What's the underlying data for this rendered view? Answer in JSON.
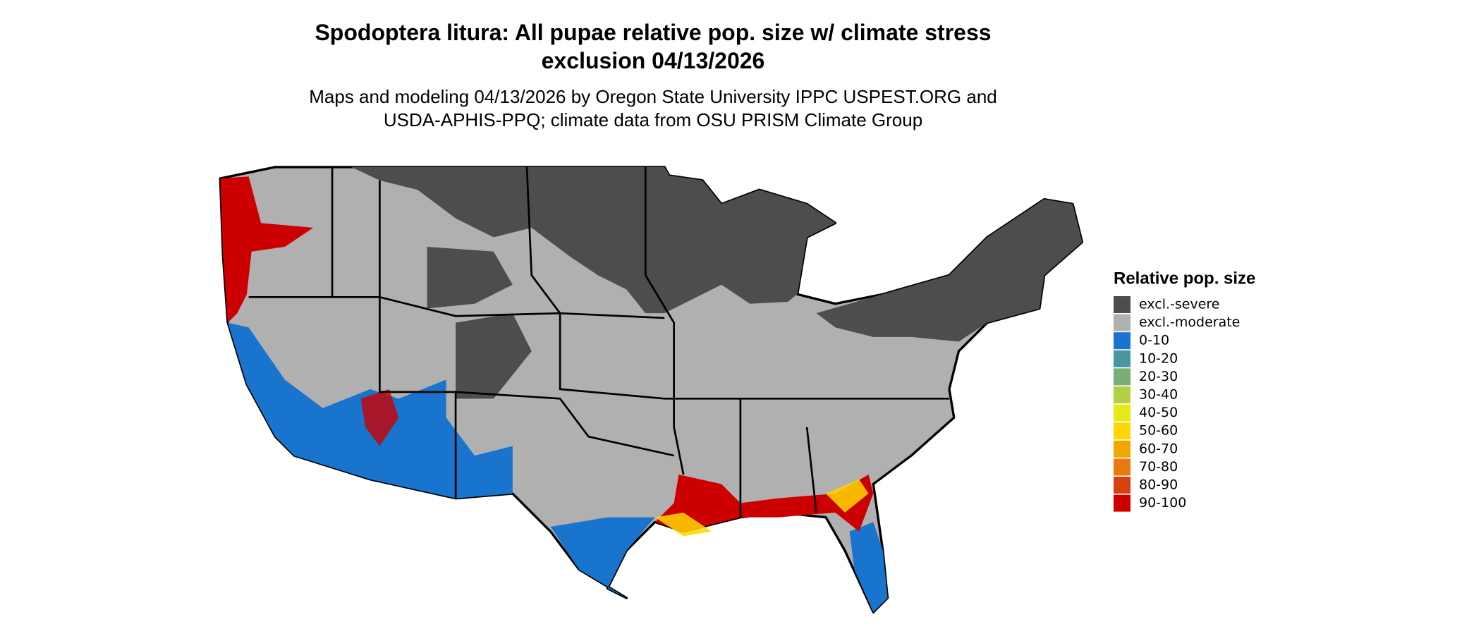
{
  "title": [
    "Spodoptera litura: All pupae relative pop. size w/ climate stress",
    "exclusion 04/13/2026"
  ],
  "subtitle": [
    "Maps and modeling 04/13/2026 by Oregon State University IPPC USPEST.ORG and",
    "USDA-APHIS-PPQ; climate data from OSU PRISM Climate Group"
  ],
  "legend": {
    "title": "Relative pop. size",
    "items": [
      {
        "label": "excl.-severe",
        "color": "#4d4d4d"
      },
      {
        "label": "excl.-moderate",
        "color": "#b0b0b0"
      },
      {
        "label": "0-10",
        "color": "#1874cd"
      },
      {
        "label": "10-20",
        "color": "#4a96a0"
      },
      {
        "label": "20-30",
        "color": "#7aae74"
      },
      {
        "label": "30-40",
        "color": "#b5cf45"
      },
      {
        "label": "40-50",
        "color": "#e3ea17"
      },
      {
        "label": "50-60",
        "color": "#ffd700"
      },
      {
        "label": "60-70",
        "color": "#f0a800"
      },
      {
        "label": "70-80",
        "color": "#e87a10"
      },
      {
        "label": "80-90",
        "color": "#d94010"
      },
      {
        "label": "90-100",
        "color": "#cc0000"
      }
    ]
  }
}
